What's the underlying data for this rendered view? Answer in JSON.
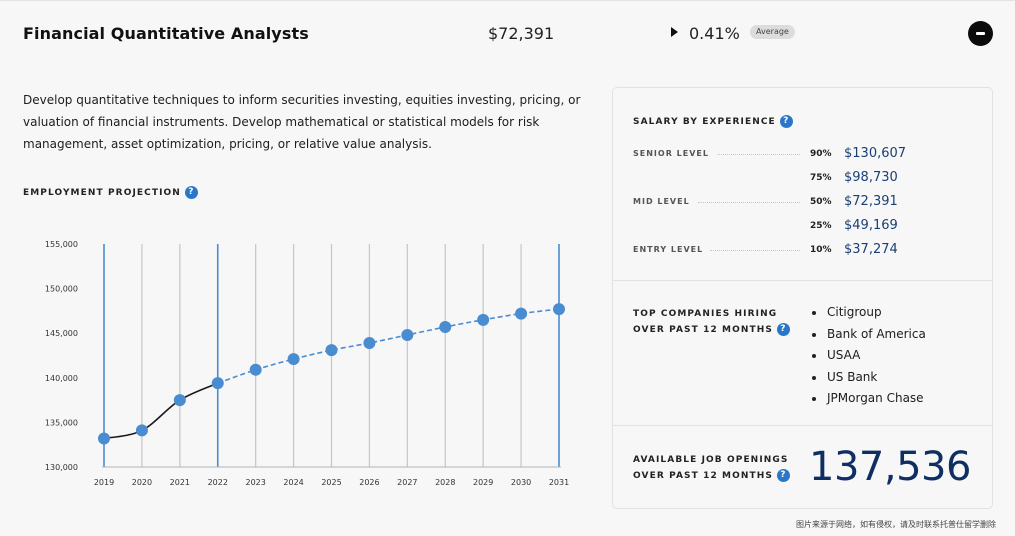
{
  "header": {
    "title": "Financial Quantitative Analysts",
    "salary": "$72,391",
    "change": "0.41%",
    "badge": "Average",
    "collapse_icon": "minus-circle-icon",
    "change_icon": "triangle-right-icon"
  },
  "description": "Develop quantitative techniques to inform securities investing, equities investing, pricing, or valuation of financial instruments. Develop mathematical or statistical models for risk management, asset optimization, pricing, or relative value analysis.",
  "projection": {
    "label": "EMPLOYMENT PROJECTION",
    "help": "?"
  },
  "chart_data": {
    "type": "line",
    "x": [
      2019,
      2020,
      2021,
      2022,
      2023,
      2024,
      2025,
      2026,
      2027,
      2028,
      2029,
      2030,
      2031
    ],
    "y": [
      133200,
      134100,
      137500,
      139400,
      140900,
      142100,
      143100,
      143900,
      144800,
      145700,
      146500,
      147200,
      147700
    ],
    "historical_through": 2022,
    "y_ticks": [
      "155,000",
      "150,000",
      "145,000",
      "140,000",
      "135,000",
      "130,000"
    ],
    "ylim": [
      130000,
      155000
    ],
    "highlighted_years": [
      2019,
      2022,
      2031
    ],
    "colors": {
      "point": "#4a8cd0",
      "historical_line": "#1a1a1a",
      "projected_line": "#4a8cd0",
      "grid": "#c9c9c9",
      "highlight_grid": "#4a8cd0"
    },
    "title": "",
    "xlabel": "",
    "ylabel": ""
  },
  "salary": {
    "label": "SALARY BY EXPERIENCE",
    "help": "?",
    "levels": [
      {
        "level": "SENIOR LEVEL",
        "pct": "90%",
        "value": "$130,607"
      },
      {
        "level": "",
        "pct": "75%",
        "value": "$98,730"
      },
      {
        "level": "MID LEVEL",
        "pct": "50%",
        "value": "$72,391"
      },
      {
        "level": "",
        "pct": "25%",
        "value": "$49,169"
      },
      {
        "level": "ENTRY LEVEL",
        "pct": "10%",
        "value": "$37,274"
      }
    ]
  },
  "companies": {
    "label_line1": "TOP COMPANIES HIRING",
    "label_line2": "OVER PAST 12 MONTHS",
    "help": "?",
    "items": [
      "Citigroup",
      "Bank of America",
      "USAA",
      "US Bank",
      "JPMorgan Chase"
    ]
  },
  "openings": {
    "label_line1": "AVAILABLE JOB OPENINGS",
    "label_line2": "OVER PAST 12 MONTHS",
    "help": "?",
    "value": "137,536"
  },
  "footer_note": "图片来源于网络，如有侵权，请及时联系托普仕留学删除"
}
